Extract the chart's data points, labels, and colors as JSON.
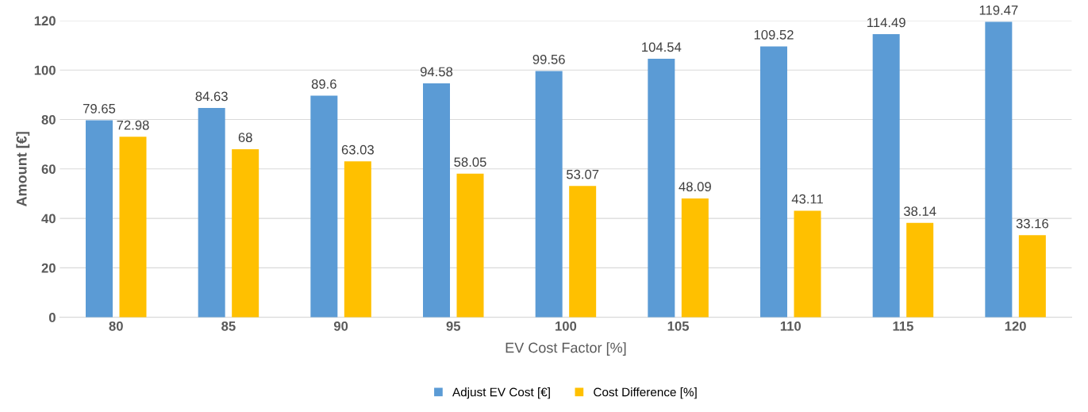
{
  "chart_data": {
    "type": "bar",
    "xlabel": "EV Cost Factor [%]",
    "ylabel": "Amount [€]",
    "categories": [
      "80",
      "85",
      "90",
      "95",
      "100",
      "105",
      "110",
      "115",
      "120"
    ],
    "series": [
      {
        "name": "Adjust EV Cost [€]",
        "color": "#5b9bd5",
        "values": [
          79.65,
          84.63,
          89.6,
          94.58,
          99.56,
          104.54,
          109.52,
          114.49,
          119.47
        ]
      },
      {
        "name": "Cost Difference [%]",
        "color": "#ffc000",
        "values": [
          72.98,
          68,
          63.03,
          58.05,
          53.07,
          48.09,
          43.11,
          38.14,
          33.16
        ]
      }
    ],
    "ylim": [
      0,
      120
    ],
    "yticks": [
      0,
      20,
      40,
      60,
      80,
      100,
      120
    ],
    "grid": "y",
    "legend": "bottom",
    "data_labels": true
  }
}
